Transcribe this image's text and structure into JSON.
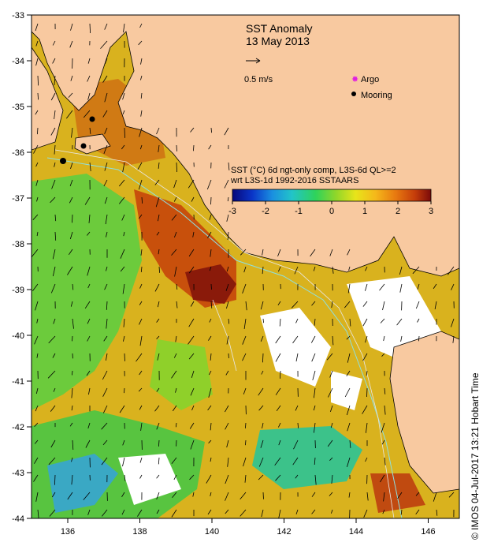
{
  "title": "SST Anomaly",
  "date": "13 May 2013",
  "vector_scale": "0.5 m/s",
  "legend": {
    "argo": "Argo",
    "mooring": "Mooring"
  },
  "colorbar": {
    "line1": "SST (°C) 6d ngt-only comp, L3S-6d QL>=2",
    "line2": "wrt L3S-1d 1992-2016 SSTAARS",
    "ticks": [
      "-3",
      "-2",
      "-1",
      "0",
      "1",
      "2",
      "3"
    ],
    "colors": [
      "#08087a",
      "#0a35c8",
      "#1a8fe0",
      "#22c4c8",
      "#2fd35a",
      "#8fd62a",
      "#e8e41a",
      "#f5b81a",
      "#e87a10",
      "#c43c0a",
      "#7a0a0a"
    ]
  },
  "axes": {
    "lat_labels": [
      "-33",
      "-34",
      "-35",
      "-36",
      "-37",
      "-38",
      "-39",
      "-40",
      "-41",
      "-42",
      "-43",
      "-44"
    ],
    "lon_labels": [
      "136",
      "138",
      "140",
      "142",
      "144",
      "146"
    ]
  },
  "credit": "© IMOS 04-Jul-2017 13:21 Hobart Time",
  "colors": {
    "land": "#f8c9a0",
    "warm": "#e8901a",
    "cool": "#4cc84c"
  }
}
